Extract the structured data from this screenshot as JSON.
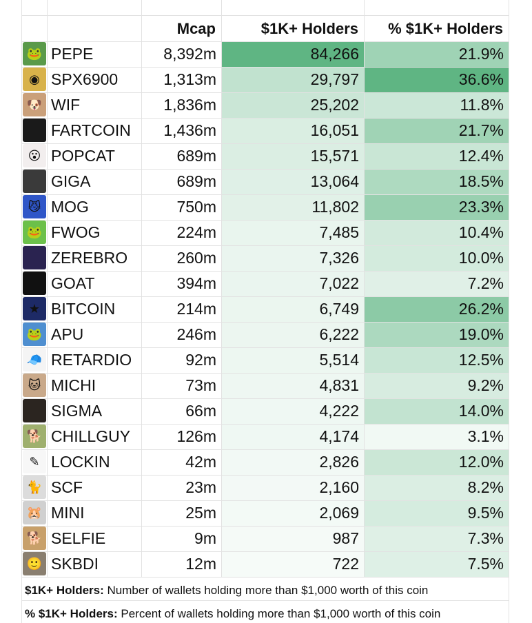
{
  "columns": {
    "mcap": "Mcap",
    "holders": "$1K+ Holders",
    "pct": "% $1K+ Holders"
  },
  "colors": {
    "heat_base": "#5fb583",
    "grid": "#e2e2e2"
  },
  "rows": [
    {
      "name": "PEPE",
      "mcap": "8,392m",
      "holders": "84,266",
      "pct": "21.9%",
      "holders_value": 84266,
      "pct_value": 21.9,
      "icon": "frog-face-icon",
      "icon_bg": "#5a9a4a",
      "glyph": "🐸"
    },
    {
      "name": "SPX6900",
      "mcap": "1,313m",
      "holders": "29,797",
      "pct": "36.6%",
      "holders_value": 29797,
      "pct_value": 36.6,
      "icon": "gold-coin-icon",
      "icon_bg": "#d8b24a",
      "glyph": "◉"
    },
    {
      "name": "WIF",
      "mcap": "1,836m",
      "holders": "25,202",
      "pct": "11.8%",
      "holders_value": 25202,
      "pct_value": 11.8,
      "icon": "dog-hat-icon",
      "icon_bg": "#caa07a",
      "glyph": "🐶"
    },
    {
      "name": "FARTCOIN",
      "mcap": "1,436m",
      "holders": "16,051",
      "pct": "21.7%",
      "holders_value": 16051,
      "pct_value": 21.7,
      "icon": "dark-logo-icon",
      "icon_bg": "#1a1a1a",
      "glyph": ""
    },
    {
      "name": "POPCAT",
      "mcap": "689m",
      "holders": "15,571",
      "pct": "12.4%",
      "holders_value": 15571,
      "pct_value": 12.4,
      "icon": "cat-face-icon",
      "icon_bg": "#f2eeee",
      "glyph": "😮"
    },
    {
      "name": "GIGA",
      "mcap": "689m",
      "holders": "13,064",
      "pct": "18.5%",
      "holders_value": 13064,
      "pct_value": 18.5,
      "icon": "portrait-icon",
      "icon_bg": "#3a3a3a",
      "glyph": ""
    },
    {
      "name": "MOG",
      "mcap": "750m",
      "holders": "11,802",
      "pct": "23.3%",
      "holders_value": 11802,
      "pct_value": 23.3,
      "icon": "cat-sunglasses-icon",
      "icon_bg": "#2f56c8",
      "glyph": "😼"
    },
    {
      "name": "FWOG",
      "mcap": "224m",
      "holders": "7,485",
      "pct": "10.4%",
      "holders_value": 7485,
      "pct_value": 10.4,
      "icon": "frog-face-icon",
      "icon_bg": "#6cc04a",
      "glyph": "🐸"
    },
    {
      "name": "ZEREBRO",
      "mcap": "260m",
      "holders": "7,326",
      "pct": "10.0%",
      "holders_value": 7326,
      "pct_value": 10.0,
      "icon": "purple-figure-icon",
      "icon_bg": "#2a2350",
      "glyph": ""
    },
    {
      "name": "GOAT",
      "mcap": "394m",
      "holders": "7,022",
      "pct": "7.2%",
      "holders_value": 7022,
      "pct_value": 7.2,
      "icon": "dark-logo-icon",
      "icon_bg": "#111111",
      "glyph": ""
    },
    {
      "name": "BITCOIN",
      "mcap": "214m",
      "holders": "6,749",
      "pct": "26.2%",
      "holders_value": 6749,
      "pct_value": 26.2,
      "icon": "cartoon-poster-icon",
      "icon_bg": "#1d2a66",
      "glyph": "★"
    },
    {
      "name": "APU",
      "mcap": "246m",
      "holders": "6,222",
      "pct": "19.0%",
      "holders_value": 6222,
      "pct_value": 19.0,
      "icon": "frog-face-icon",
      "icon_bg": "#4f8fd0",
      "glyph": "🐸"
    },
    {
      "name": "RETARDIO",
      "mcap": "92m",
      "holders": "5,514",
      "pct": "12.5%",
      "holders_value": 5514,
      "pct_value": 12.5,
      "icon": "cap-face-icon",
      "icon_bg": "#f4f4f4",
      "glyph": "🧢"
    },
    {
      "name": "MICHI",
      "mcap": "73m",
      "holders": "4,831",
      "pct": "9.2%",
      "holders_value": 4831,
      "pct_value": 9.2,
      "icon": "cat-face-icon",
      "icon_bg": "#c9a98a",
      "glyph": "🐱"
    },
    {
      "name": "SIGMA",
      "mcap": "66m",
      "holders": "4,222",
      "pct": "14.0%",
      "holders_value": 4222,
      "pct_value": 14.0,
      "icon": "portrait-icon",
      "icon_bg": "#2b2520",
      "glyph": ""
    },
    {
      "name": "CHILLGUY",
      "mcap": "126m",
      "holders": "4,174",
      "pct": "3.1%",
      "holders_value": 4174,
      "pct_value": 3.1,
      "icon": "dog-face-icon",
      "icon_bg": "#9fb06e",
      "glyph": "🐕"
    },
    {
      "name": "LOCKIN",
      "mcap": "42m",
      "holders": "2,826",
      "pct": "12.0%",
      "holders_value": 2826,
      "pct_value": 12.0,
      "icon": "sketch-figure-icon",
      "icon_bg": "#f7f7f7",
      "glyph": "✎"
    },
    {
      "name": "SCF",
      "mcap": "23m",
      "holders": "2,160",
      "pct": "8.2%",
      "holders_value": 2160,
      "pct_value": 8.2,
      "icon": "white-cat-icon",
      "icon_bg": "#dcdcdc",
      "glyph": "🐈"
    },
    {
      "name": "MINI",
      "mcap": "25m",
      "holders": "2,069",
      "pct": "9.5%",
      "holders_value": 2069,
      "pct_value": 9.5,
      "icon": "mini-creature-icon",
      "icon_bg": "#d0d0d0",
      "glyph": "🐹"
    },
    {
      "name": "SELFIE",
      "mcap": "9m",
      "holders": "987",
      "pct": "7.3%",
      "holders_value": 987,
      "pct_value": 7.3,
      "icon": "dog-face-icon",
      "icon_bg": "#c8a06a",
      "glyph": "🐕"
    },
    {
      "name": "SKBDI",
      "mcap": "12m",
      "holders": "722",
      "pct": "7.5%",
      "holders_value": 722,
      "pct_value": 7.5,
      "icon": "head-icon",
      "icon_bg": "#8a7f70",
      "glyph": "🙂"
    }
  ],
  "footnotes": [
    {
      "term": "$1K+ Holders:",
      "text": " Number of wallets holding more than $1,000 worth of this coin"
    },
    {
      "term": "% $1K+ Holders:",
      "text": " Percent of wallets holding more than $1,000 worth of this coin"
    }
  ]
}
